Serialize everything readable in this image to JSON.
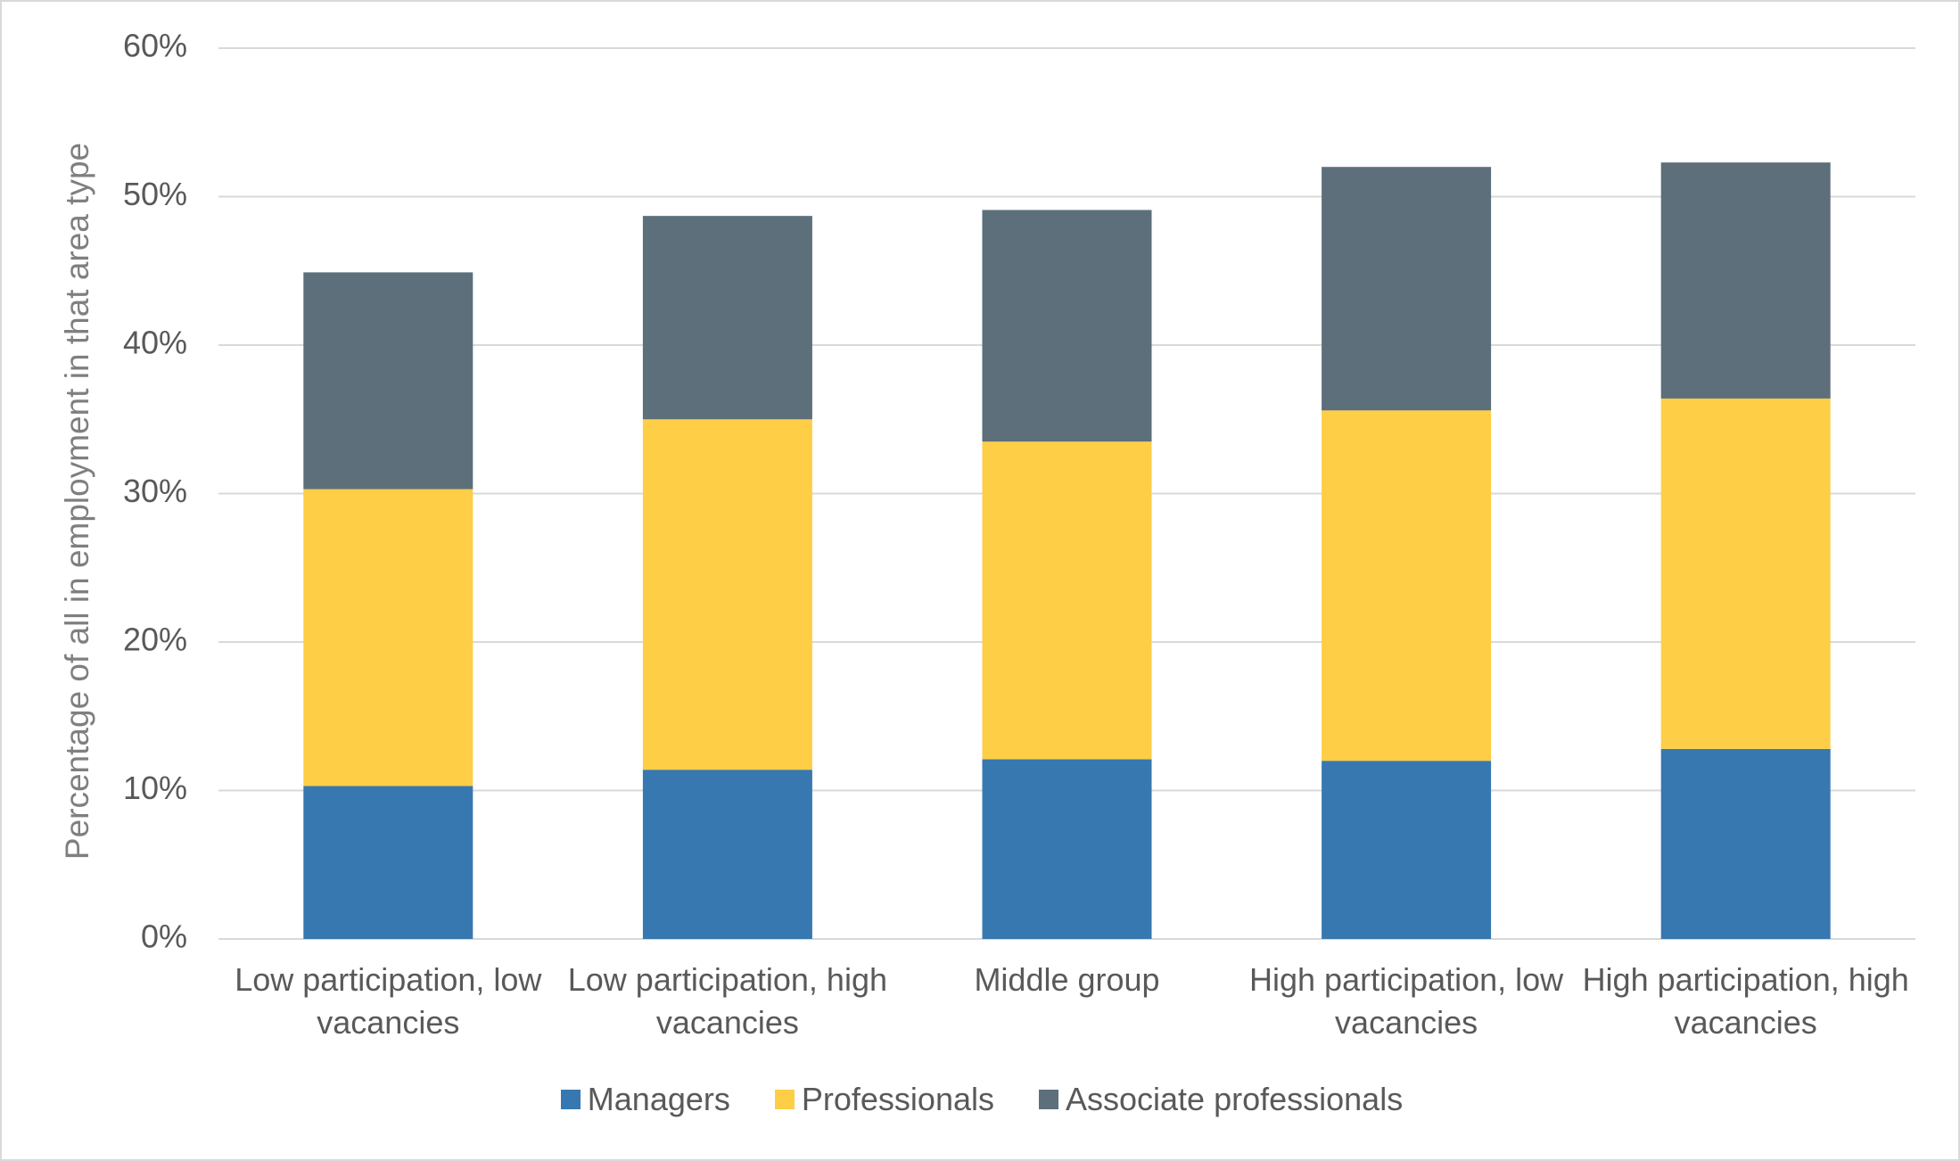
{
  "chart_data": {
    "type": "stacked_bar",
    "y_axis_label": "Percentage of all in employment in that area type",
    "categories": [
      "Low participation, low vacancies",
      "Low participation, high vacancies",
      "Middle group",
      "High participation, low vacancies",
      "High participation, high vacancies"
    ],
    "series": [
      {
        "name": "Managers",
        "color": "#3878b0",
        "values": [
          10.3,
          11.4,
          12.1,
          12.0,
          12.8
        ]
      },
      {
        "name": "Professionals",
        "color": "#fdce46",
        "values": [
          20.0,
          23.6,
          21.4,
          23.6,
          23.6
        ]
      },
      {
        "name": "Associate professionals",
        "color": "#5c6f7b",
        "values": [
          14.6,
          13.7,
          15.6,
          16.4,
          15.9
        ]
      }
    ],
    "ylim": [
      0,
      60
    ],
    "yticks": [
      {
        "value": 0,
        "label": "0%"
      },
      {
        "value": 10,
        "label": "10%"
      },
      {
        "value": 20,
        "label": "20%"
      },
      {
        "value": 30,
        "label": "30%"
      },
      {
        "value": 40,
        "label": "40%"
      },
      {
        "value": 50,
        "label": "50%"
      },
      {
        "value": 60,
        "label": "60%"
      }
    ],
    "grid": true,
    "legend": "bottom"
  }
}
